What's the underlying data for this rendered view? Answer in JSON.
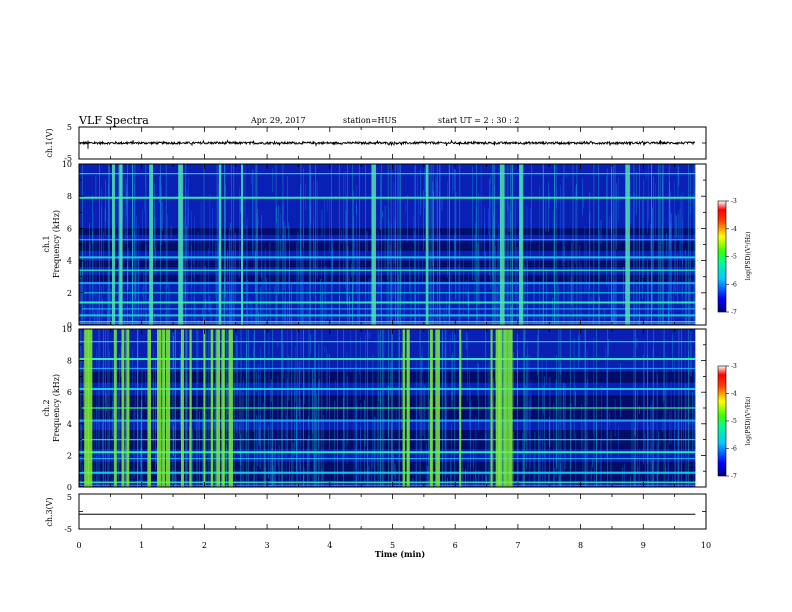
{
  "header": {
    "title": "VLF Spectra",
    "date": "Apr. 29, 2017",
    "station": "station=HUS",
    "start": "start  UT =   2  : 30 : 2"
  },
  "chart_data": [
    {
      "type": "line",
      "ylabel": "ch.1(V)",
      "ylim": [
        -5,
        5
      ],
      "ytick_labels": [
        "5",
        "-5"
      ],
      "description_values": {
        "level_V": 0,
        "noise_amplitude_V": 0.35
      },
      "xlim": [
        0,
        10
      ]
    },
    {
      "type": "heatmap",
      "ylabel": "ch.1",
      "ylabel2": "Frequency (kHz)",
      "ylim": [
        0,
        10
      ],
      "ytick_labels": [
        "0",
        "2",
        "4",
        "6",
        "8",
        "10"
      ],
      "xlim": [
        0,
        10
      ],
      "data_extent_x": [
        0,
        9.83
      ],
      "colorbar": {
        "label": "log(PSD)(V²/Hz)",
        "range": [
          -7,
          -3
        ],
        "tick_labels": [
          "-3",
          "-4",
          "-5",
          "-6",
          "-7"
        ]
      },
      "bands_kHz": [
        0.2,
        0.6,
        1.0,
        1.4,
        2.0,
        2.6,
        3.4,
        4.2,
        5.3,
        7.9,
        9.4
      ],
      "bursts_min": [
        0.55,
        0.67,
        1.15,
        1.62,
        2.25,
        2.6,
        4.7,
        5.55,
        6.75,
        7.05,
        8.75
      ]
    },
    {
      "type": "heatmap",
      "ylabel": "ch.2",
      "ylabel2": "Frequency (kHz)",
      "ylim": [
        0,
        10
      ],
      "ytick_labels": [
        "0",
        "2",
        "4",
        "6",
        "8",
        "10"
      ],
      "xlim": [
        0,
        10
      ],
      "data_extent_x": [
        0,
        9.83
      ],
      "colorbar": {
        "label": "log(PSD)(V²/Hz)",
        "range": [
          -7,
          -3
        ],
        "tick_labels": [
          "-3",
          "-4",
          "-5",
          "-6",
          "-7"
        ]
      },
      "bands_kHz": [
        0.3,
        0.9,
        1.8,
        2.2,
        3.0,
        4.2,
        5.0,
        6.2,
        7.5,
        8.1,
        9.2
      ],
      "bursts_min": [
        0.12,
        0.18,
        0.58,
        0.7,
        0.78,
        1.12,
        1.28,
        1.35,
        1.42,
        1.65,
        1.78,
        2.0,
        2.12,
        2.22,
        2.3,
        2.42,
        5.18,
        5.25,
        5.62,
        5.72,
        6.08,
        6.58,
        6.68,
        6.72,
        6.8,
        6.88
      ]
    },
    {
      "type": "line",
      "ylabel": "ch.3(V)",
      "ylim": [
        -5,
        5
      ],
      "ytick_labels": [
        "5",
        "-5"
      ],
      "description_values": {
        "level_V": -0.8
      },
      "xlim": [
        0,
        10
      ],
      "xlabel": "Time  (min)",
      "xtick_labels": [
        "0",
        "1",
        "2",
        "3",
        "4",
        "5",
        "6",
        "7",
        "8",
        "9",
        "10"
      ]
    }
  ]
}
